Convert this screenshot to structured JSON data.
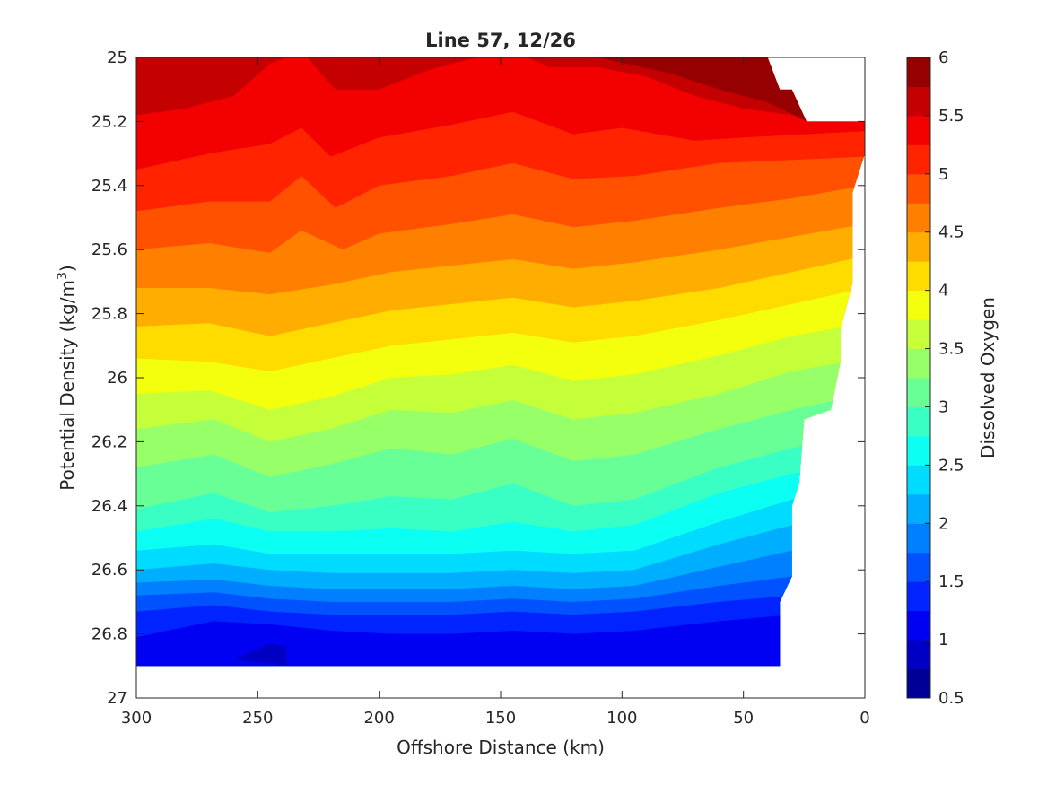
{
  "chart_data": {
    "type": "contourf",
    "title": "Line 57, 12/26",
    "xlabel": "Offshore Distance (km)",
    "ylabel": "Potential Density (kg/m",
    "ylabel_sup": "3",
    "ylabel_close": ")",
    "xlim": [
      300,
      0
    ],
    "ylim": [
      25,
      27
    ],
    "y_reversed": true,
    "x_reversed": true,
    "xticks": [
      300,
      250,
      200,
      150,
      100,
      50,
      0
    ],
    "yticks": [
      25,
      25.2,
      25.4,
      25.6,
      25.8,
      26,
      26.2,
      26.4,
      26.6,
      26.8,
      27
    ],
    "colorbar": {
      "label": "Dissolved Oxygen",
      "range": [
        0.5,
        6
      ],
      "step": 0.25,
      "ticks": [
        0.5,
        1,
        1.5,
        2,
        2.5,
        3,
        3.5,
        4,
        4.5,
        5,
        5.5,
        6
      ],
      "colormap": "jet"
    },
    "data_extent": {
      "x_min": 0,
      "x_max": 300,
      "deep_limit": [
        [
          300,
          26.9
        ],
        [
          35,
          26.9
        ],
        [
          35,
          26.7
        ],
        [
          30,
          26.62
        ],
        [
          30,
          26.4
        ],
        [
          27,
          26.33
        ],
        [
          25,
          26.13
        ],
        [
          14,
          26.1
        ],
        [
          10,
          25.95
        ],
        [
          10,
          25.85
        ],
        [
          5,
          25.7
        ],
        [
          5,
          25.42
        ],
        [
          0,
          25.3
        ],
        [
          0,
          25.2
        ]
      ],
      "shallow_limit": [
        [
          300,
          25
        ],
        [
          40,
          25
        ],
        [
          35,
          25.1
        ],
        [
          30,
          25.1
        ],
        [
          24,
          25.2
        ],
        [
          0,
          25.2
        ]
      ]
    },
    "isolines": [
      {
        "level": 5.5,
        "points": [
          [
            300,
            25.18
          ],
          [
            280,
            25.16
          ],
          [
            260,
            25.12
          ],
          [
            245,
            25.02
          ],
          [
            232,
            24.98
          ],
          [
            218,
            25.1
          ],
          [
            200,
            25.1
          ],
          [
            180,
            25.04
          ],
          [
            160,
            25.0
          ],
          [
            145,
            24.98
          ],
          [
            130,
            25.03
          ],
          [
            110,
            25.03
          ],
          [
            90,
            25.06
          ],
          [
            70,
            25.12
          ],
          [
            50,
            25.16
          ],
          [
            30,
            25.18
          ],
          [
            0,
            25.18
          ]
        ]
      },
      {
        "level": 5.25,
        "points": [
          [
            300,
            25.35
          ],
          [
            270,
            25.3
          ],
          [
            245,
            25.27
          ],
          [
            232,
            25.22
          ],
          [
            220,
            25.31
          ],
          [
            200,
            25.25
          ],
          [
            170,
            25.21
          ],
          [
            145,
            25.17
          ],
          [
            120,
            25.24
          ],
          [
            100,
            25.22
          ],
          [
            70,
            25.26
          ],
          [
            50,
            25.25
          ],
          [
            0,
            25.23
          ]
        ]
      },
      {
        "level": 5.0,
        "points": [
          [
            300,
            25.48
          ],
          [
            270,
            25.45
          ],
          [
            245,
            25.45
          ],
          [
            232,
            25.37
          ],
          [
            218,
            25.47
          ],
          [
            200,
            25.4
          ],
          [
            170,
            25.37
          ],
          [
            145,
            25.33
          ],
          [
            120,
            25.38
          ],
          [
            95,
            25.37
          ],
          [
            60,
            25.33
          ],
          [
            30,
            25.32
          ],
          [
            0,
            25.31
          ]
        ]
      },
      {
        "level": 4.75,
        "points": [
          [
            300,
            25.6
          ],
          [
            270,
            25.58
          ],
          [
            245,
            25.61
          ],
          [
            232,
            25.54
          ],
          [
            215,
            25.6
          ],
          [
            200,
            25.55
          ],
          [
            170,
            25.52
          ],
          [
            145,
            25.49
          ],
          [
            120,
            25.53
          ],
          [
            95,
            25.51
          ],
          [
            60,
            25.47
          ],
          [
            30,
            25.44
          ],
          [
            0,
            25.4
          ]
        ]
      },
      {
        "level": 4.5,
        "points": [
          [
            300,
            25.72
          ],
          [
            270,
            25.72
          ],
          [
            245,
            25.74
          ],
          [
            220,
            25.71
          ],
          [
            195,
            25.67
          ],
          [
            170,
            25.65
          ],
          [
            145,
            25.63
          ],
          [
            120,
            25.66
          ],
          [
            95,
            25.64
          ],
          [
            60,
            25.6
          ],
          [
            30,
            25.56
          ],
          [
            0,
            25.52
          ]
        ]
      },
      {
        "level": 4.25,
        "points": [
          [
            300,
            25.84
          ],
          [
            270,
            25.83
          ],
          [
            245,
            25.87
          ],
          [
            220,
            25.83
          ],
          [
            195,
            25.79
          ],
          [
            170,
            25.77
          ],
          [
            145,
            25.75
          ],
          [
            120,
            25.78
          ],
          [
            95,
            25.76
          ],
          [
            60,
            25.72
          ],
          [
            30,
            25.67
          ],
          [
            0,
            25.62
          ]
        ]
      },
      {
        "level": 4.0,
        "points": [
          [
            300,
            25.94
          ],
          [
            270,
            25.95
          ],
          [
            245,
            25.98
          ],
          [
            220,
            25.94
          ],
          [
            195,
            25.9
          ],
          [
            170,
            25.88
          ],
          [
            145,
            25.86
          ],
          [
            120,
            25.89
          ],
          [
            95,
            25.87
          ],
          [
            60,
            25.82
          ],
          [
            30,
            25.77
          ],
          [
            0,
            25.72
          ]
        ]
      },
      {
        "level": 3.75,
        "points": [
          [
            300,
            26.05
          ],
          [
            270,
            26.04
          ],
          [
            245,
            26.1
          ],
          [
            220,
            26.06
          ],
          [
            195,
            26.0
          ],
          [
            170,
            25.99
          ],
          [
            145,
            25.96
          ],
          [
            120,
            26.01
          ],
          [
            95,
            25.99
          ],
          [
            60,
            25.93
          ],
          [
            30,
            25.87
          ],
          [
            0,
            25.83
          ]
        ]
      },
      {
        "level": 3.5,
        "points": [
          [
            300,
            26.16
          ],
          [
            268,
            26.13
          ],
          [
            245,
            26.2
          ],
          [
            220,
            26.16
          ],
          [
            195,
            26.1
          ],
          [
            170,
            26.11
          ],
          [
            145,
            26.07
          ],
          [
            120,
            26.13
          ],
          [
            95,
            26.11
          ],
          [
            60,
            26.05
          ],
          [
            30,
            25.98
          ],
          [
            0,
            25.94
          ]
        ]
      },
      {
        "level": 3.25,
        "points": [
          [
            300,
            26.28
          ],
          [
            268,
            26.24
          ],
          [
            245,
            26.31
          ],
          [
            220,
            26.27
          ],
          [
            195,
            26.22
          ],
          [
            170,
            26.24
          ],
          [
            145,
            26.19
          ],
          [
            120,
            26.26
          ],
          [
            95,
            26.24
          ],
          [
            60,
            26.16
          ],
          [
            30,
            26.1
          ],
          [
            0,
            26.05
          ]
        ]
      },
      {
        "level": 3.0,
        "points": [
          [
            300,
            26.41
          ],
          [
            268,
            26.36
          ],
          [
            245,
            26.42
          ],
          [
            220,
            26.4
          ],
          [
            195,
            26.37
          ],
          [
            170,
            26.38
          ],
          [
            145,
            26.33
          ],
          [
            120,
            26.4
          ],
          [
            95,
            26.38
          ],
          [
            60,
            26.28
          ],
          [
            30,
            26.22
          ],
          [
            0,
            26.16
          ]
        ]
      },
      {
        "level": 2.75,
        "points": [
          [
            300,
            26.48
          ],
          [
            268,
            26.44
          ],
          [
            245,
            26.48
          ],
          [
            220,
            26.48
          ],
          [
            195,
            26.47
          ],
          [
            170,
            26.48
          ],
          [
            145,
            26.45
          ],
          [
            120,
            26.48
          ],
          [
            95,
            26.46
          ],
          [
            60,
            26.36
          ],
          [
            30,
            26.3
          ],
          [
            0,
            26.25
          ]
        ]
      },
      {
        "level": 2.5,
        "points": [
          [
            300,
            26.54
          ],
          [
            268,
            26.52
          ],
          [
            245,
            26.55
          ],
          [
            220,
            26.55
          ],
          [
            195,
            26.55
          ],
          [
            170,
            26.55
          ],
          [
            145,
            26.54
          ],
          [
            120,
            26.55
          ],
          [
            95,
            26.54
          ],
          [
            60,
            26.45
          ],
          [
            30,
            26.38
          ],
          [
            0,
            26.35
          ]
        ]
      },
      {
        "level": 2.25,
        "points": [
          [
            300,
            26.6
          ],
          [
            268,
            26.58
          ],
          [
            245,
            26.6
          ],
          [
            220,
            26.61
          ],
          [
            195,
            26.61
          ],
          [
            170,
            26.61
          ],
          [
            145,
            26.6
          ],
          [
            120,
            26.61
          ],
          [
            95,
            26.6
          ],
          [
            60,
            26.52
          ],
          [
            30,
            26.46
          ],
          [
            0,
            26.43
          ]
        ]
      },
      {
        "level": 2.0,
        "points": [
          [
            300,
            26.64
          ],
          [
            268,
            26.63
          ],
          [
            245,
            26.65
          ],
          [
            220,
            26.66
          ],
          [
            195,
            26.66
          ],
          [
            170,
            26.66
          ],
          [
            145,
            26.65
          ],
          [
            120,
            26.66
          ],
          [
            95,
            26.65
          ],
          [
            60,
            26.59
          ],
          [
            30,
            26.54
          ],
          [
            0,
            26.51
          ]
        ]
      },
      {
        "level": 1.75,
        "points": [
          [
            300,
            26.68
          ],
          [
            268,
            26.67
          ],
          [
            245,
            26.69
          ],
          [
            220,
            26.7
          ],
          [
            195,
            26.7
          ],
          [
            170,
            26.7
          ],
          [
            145,
            26.69
          ],
          [
            120,
            26.7
          ],
          [
            95,
            26.69
          ],
          [
            60,
            26.65
          ],
          [
            30,
            26.62
          ],
          [
            0,
            26.59
          ]
        ]
      },
      {
        "level": 1.5,
        "points": [
          [
            300,
            26.73
          ],
          [
            268,
            26.71
          ],
          [
            245,
            26.73
          ],
          [
            220,
            26.74
          ],
          [
            195,
            26.74
          ],
          [
            170,
            26.74
          ],
          [
            145,
            26.73
          ],
          [
            120,
            26.74
          ],
          [
            95,
            26.73
          ],
          [
            60,
            26.7
          ],
          [
            30,
            26.68
          ],
          [
            0,
            26.66
          ]
        ]
      },
      {
        "level": 1.25,
        "points": [
          [
            300,
            26.81
          ],
          [
            268,
            26.76
          ],
          [
            245,
            26.77
          ],
          [
            220,
            26.79
          ],
          [
            195,
            26.8
          ],
          [
            170,
            26.8
          ],
          [
            145,
            26.79
          ],
          [
            120,
            26.8
          ],
          [
            95,
            26.79
          ],
          [
            60,
            26.76
          ],
          [
            30,
            26.74
          ],
          [
            0,
            26.72
          ]
        ]
      },
      {
        "level": 1.0,
        "points": [
          [
            260,
            26.88
          ],
          [
            245,
            26.83
          ],
          [
            238,
            26.84
          ],
          [
            238,
            26.9
          ]
        ]
      }
    ]
  }
}
